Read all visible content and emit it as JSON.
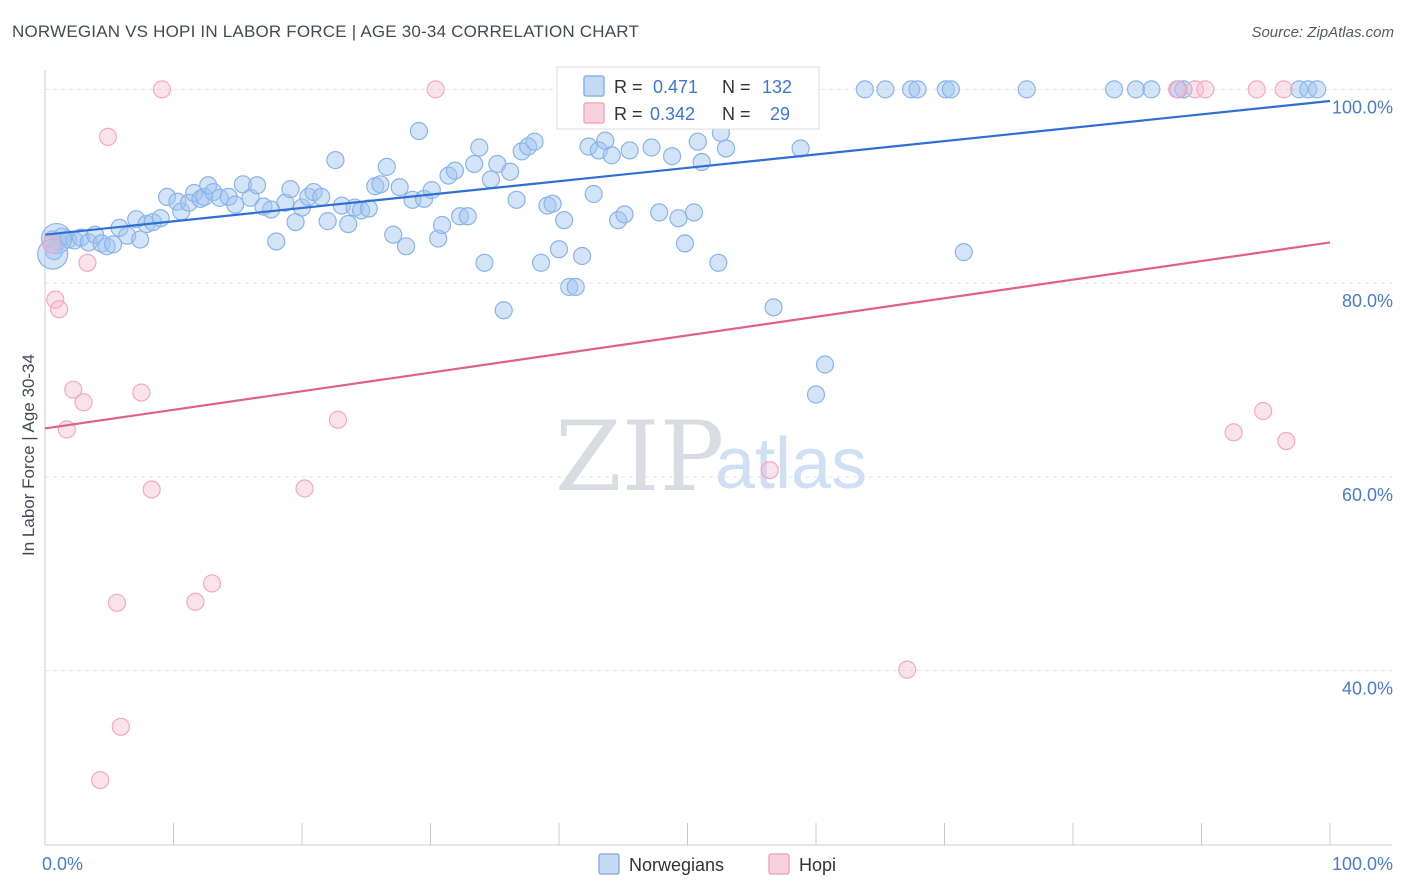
{
  "title": "NORWEGIAN VS HOPI IN LABOR FORCE | AGE 30-34 CORRELATION CHART",
  "source": "Source: ZipAtlas.com",
  "watermark": {
    "zip": "ZIP",
    "atlas": "atlas"
  },
  "chart_data": {
    "type": "scatter",
    "ylabel": "In Labor Force | Age 30-34",
    "xlim": [
      0,
      100
    ],
    "ylim": [
      22,
      102
    ],
    "x_tick_labels": [
      {
        "value": 0,
        "label": "0.0%"
      },
      {
        "value": 100,
        "label": "100.0%"
      }
    ],
    "y_tick_labels": [
      {
        "value": 100,
        "label": "100.0%"
      },
      {
        "value": 80,
        "label": "80.0%"
      },
      {
        "value": 60,
        "label": "60.0%"
      },
      {
        "value": 40,
        "label": "40.0%"
      }
    ],
    "grid": true,
    "legend_placement": "top-center",
    "series": [
      {
        "name": "Norwegians",
        "color": "#8ab4e8",
        "line_color": "#2f6fd3",
        "R": "0.471",
        "N": "132",
        "trend": [
          [
            0,
            85.0
          ],
          [
            100,
            98.8
          ]
        ],
        "points": [
          [
            0.6,
            84.5
          ],
          [
            0.7,
            83.3
          ],
          [
            1.0,
            84.3
          ],
          [
            1.3,
            84.8
          ],
          [
            1.8,
            84.5
          ],
          [
            2.3,
            84.4
          ],
          [
            2.8,
            84.7
          ],
          [
            3.4,
            84.2
          ],
          [
            3.9,
            85.0
          ],
          [
            4.4,
            84.1
          ],
          [
            4.8,
            83.8
          ],
          [
            5.3,
            84.0
          ],
          [
            5.8,
            85.7
          ],
          [
            6.4,
            84.9
          ],
          [
            7.1,
            86.6
          ],
          [
            7.4,
            84.5
          ],
          [
            7.9,
            86.1
          ],
          [
            8.4,
            86.3
          ],
          [
            9.0,
            86.7
          ],
          [
            9.5,
            88.9
          ],
          [
            10.3,
            88.4
          ],
          [
            10.6,
            87.4
          ],
          [
            11.2,
            88.3
          ],
          [
            11.6,
            89.3
          ],
          [
            12.1,
            88.7
          ],
          [
            12.4,
            88.9
          ],
          [
            12.7,
            90.1
          ],
          [
            13.1,
            89.4
          ],
          [
            13.6,
            88.8
          ],
          [
            14.3,
            88.9
          ],
          [
            14.8,
            88.1
          ],
          [
            15.4,
            90.2
          ],
          [
            16.0,
            88.8
          ],
          [
            16.5,
            90.1
          ],
          [
            17.0,
            87.9
          ],
          [
            17.6,
            87.6
          ],
          [
            18.0,
            84.3
          ],
          [
            18.7,
            88.3
          ],
          [
            19.1,
            89.7
          ],
          [
            19.5,
            86.3
          ],
          [
            20.0,
            87.8
          ],
          [
            20.5,
            88.9
          ],
          [
            20.9,
            89.4
          ],
          [
            21.5,
            88.9
          ],
          [
            22.0,
            86.4
          ],
          [
            22.6,
            92.7
          ],
          [
            23.1,
            88.0
          ],
          [
            23.6,
            86.1
          ],
          [
            24.1,
            87.8
          ],
          [
            24.6,
            87.5
          ],
          [
            25.2,
            87.7
          ],
          [
            25.7,
            90.0
          ],
          [
            26.1,
            90.2
          ],
          [
            26.6,
            92.0
          ],
          [
            27.1,
            85.0
          ],
          [
            27.6,
            89.9
          ],
          [
            28.1,
            83.8
          ],
          [
            28.6,
            88.6
          ],
          [
            29.1,
            95.7
          ],
          [
            29.5,
            88.7
          ],
          [
            30.1,
            89.6
          ],
          [
            30.6,
            84.6
          ],
          [
            30.9,
            86.0
          ],
          [
            31.4,
            91.1
          ],
          [
            31.9,
            91.6
          ],
          [
            32.3,
            86.9
          ],
          [
            32.9,
            86.9
          ],
          [
            33.4,
            92.3
          ],
          [
            33.8,
            94.0
          ],
          [
            34.2,
            82.1
          ],
          [
            34.7,
            90.7
          ],
          [
            35.2,
            92.3
          ],
          [
            35.7,
            77.2
          ],
          [
            36.2,
            91.5
          ],
          [
            36.7,
            88.6
          ],
          [
            37.1,
            93.6
          ],
          [
            37.6,
            94.1
          ],
          [
            38.1,
            94.6
          ],
          [
            38.6,
            82.1
          ],
          [
            39.1,
            88.0
          ],
          [
            39.5,
            88.2
          ],
          [
            40.0,
            83.5
          ],
          [
            40.4,
            86.5
          ],
          [
            40.8,
            79.6
          ],
          [
            41.3,
            79.6
          ],
          [
            41.8,
            82.8
          ],
          [
            42.3,
            94.1
          ],
          [
            42.7,
            89.2
          ],
          [
            43.1,
            93.7
          ],
          [
            43.6,
            94.7
          ],
          [
            44.1,
            93.2
          ],
          [
            44.6,
            86.5
          ],
          [
            45.1,
            87.1
          ],
          [
            45.5,
            93.7
          ],
          [
            46.1,
            100.0
          ],
          [
            46.6,
            99.3
          ],
          [
            47.2,
            94.0
          ],
          [
            47.8,
            87.3
          ],
          [
            48.3,
            98.0
          ],
          [
            48.8,
            93.1
          ],
          [
            49.3,
            86.7
          ],
          [
            49.8,
            84.1
          ],
          [
            50.5,
            87.3
          ],
          [
            50.8,
            94.6
          ],
          [
            51.1,
            92.5
          ],
          [
            51.8,
            99.9
          ],
          [
            52.4,
            82.1
          ],
          [
            52.6,
            95.5
          ],
          [
            53.0,
            93.9
          ],
          [
            54.1,
            100.0
          ],
          [
            54.9,
            100.0
          ],
          [
            56.3,
            100.0
          ],
          [
            56.7,
            77.5
          ],
          [
            58.8,
            93.9
          ],
          [
            60.0,
            68.5
          ],
          [
            60.7,
            71.6
          ],
          [
            63.8,
            100.0
          ],
          [
            65.4,
            100.0
          ],
          [
            67.4,
            100.0
          ],
          [
            67.9,
            100.0
          ],
          [
            70.1,
            100.0
          ],
          [
            70.5,
            100.0
          ],
          [
            71.5,
            83.2
          ],
          [
            76.4,
            100.0
          ],
          [
            83.2,
            100.0
          ],
          [
            84.9,
            100.0
          ],
          [
            86.1,
            100.0
          ],
          [
            88.2,
            100.0
          ],
          [
            88.6,
            100.0
          ],
          [
            97.6,
            100.0
          ],
          [
            98.3,
            100.0
          ],
          [
            99.0,
            100.0
          ]
        ],
        "large_points": [
          [
            0.9,
            84.6
          ],
          [
            0.6,
            83.0
          ]
        ]
      },
      {
        "name": "Hopi",
        "color": "#f4a8c1",
        "line_color": "#e0608d",
        "R": "0.342",
        "N": "29",
        "trend": [
          [
            0,
            65.0
          ],
          [
            100,
            84.2
          ]
        ],
        "points": [
          [
            0.5,
            84.0
          ],
          [
            0.8,
            78.3
          ],
          [
            1.1,
            77.3
          ],
          [
            1.7,
            64.9
          ],
          [
            2.2,
            69.0
          ],
          [
            3.0,
            67.7
          ],
          [
            3.3,
            82.1
          ],
          [
            4.3,
            28.7
          ],
          [
            4.9,
            95.1
          ],
          [
            5.6,
            47.0
          ],
          [
            5.9,
            34.2
          ],
          [
            7.5,
            68.7
          ],
          [
            8.3,
            58.7
          ],
          [
            9.1,
            100.0
          ],
          [
            11.7,
            47.1
          ],
          [
            13.0,
            49.0
          ],
          [
            20.2,
            58.8
          ],
          [
            22.8,
            65.9
          ],
          [
            30.4,
            100.0
          ],
          [
            56.4,
            60.7
          ],
          [
            67.1,
            40.1
          ],
          [
            88.1,
            100.0
          ],
          [
            89.5,
            100.0
          ],
          [
            90.3,
            100.0
          ],
          [
            92.5,
            64.6
          ],
          [
            94.3,
            100.0
          ],
          [
            94.8,
            66.8
          ],
          [
            96.4,
            100.0
          ],
          [
            96.6,
            63.7
          ]
        ]
      }
    ]
  },
  "legend": {
    "r_label": "R =",
    "n_label": "N ="
  }
}
